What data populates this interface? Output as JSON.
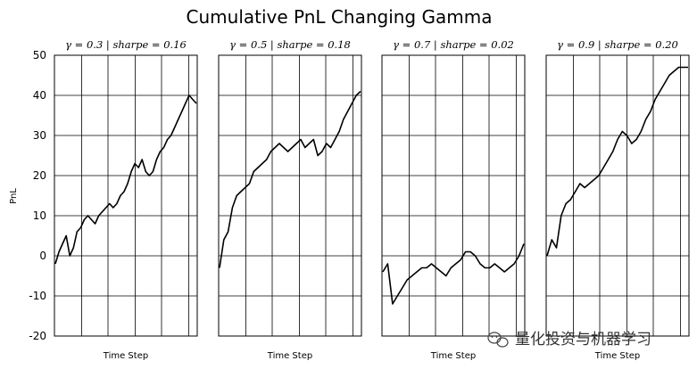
{
  "title": "Cumulative PnL Changing Gamma",
  "ylabel": "PnL",
  "watermark": "量化投资与机器学习",
  "chart_data": [
    {
      "type": "line",
      "subtitle": "γ = 0.3 | sharpe = 0.16",
      "xlabel": "Time Step",
      "ylabel": "PnL",
      "ylim": [
        -20,
        50
      ],
      "yticks": [
        -20,
        -10,
        0,
        10,
        20,
        30,
        40,
        50
      ],
      "grid": true,
      "series": [
        {
          "values": [
            -2,
            1,
            3,
            5,
            0,
            2,
            6,
            7,
            9,
            10,
            9,
            8,
            10,
            11,
            12,
            13,
            12,
            13,
            15,
            16,
            18,
            21,
            23,
            22,
            24,
            21,
            20,
            21,
            24,
            26,
            27,
            29,
            30,
            32,
            34,
            36,
            38,
            40,
            39,
            38
          ]
        }
      ]
    },
    {
      "type": "line",
      "subtitle": "γ = 0.5 | sharpe = 0.18",
      "xlabel": "Time Step",
      "ylim": [
        -20,
        50
      ],
      "grid": true,
      "series": [
        {
          "values": [
            -3,
            4,
            6,
            12,
            15,
            16,
            17,
            18,
            21,
            22,
            23,
            24,
            26,
            27,
            28,
            27,
            26,
            27,
            28,
            29,
            27,
            28,
            29,
            25,
            26,
            28,
            27,
            29,
            31,
            34,
            36,
            38,
            40,
            41
          ]
        }
      ]
    },
    {
      "type": "line",
      "subtitle": "γ = 0.7 | sharpe = 0.02",
      "xlabel": "Time Step",
      "ylim": [
        -20,
        50
      ],
      "grid": true,
      "series": [
        {
          "values": [
            -4,
            -2,
            -12,
            -10,
            -8,
            -6,
            -5,
            -4,
            -3,
            -3,
            -2,
            -3,
            -4,
            -5,
            -3,
            -2,
            -1,
            1,
            1,
            0,
            -2,
            -3,
            -3,
            -2,
            -3,
            -4,
            -3,
            -2,
            0,
            3
          ]
        }
      ]
    },
    {
      "type": "line",
      "subtitle": "γ = 0.9 | sharpe = 0.20",
      "xlabel": "Time Step",
      "ylim": [
        -20,
        50
      ],
      "grid": true,
      "series": [
        {
          "values": [
            0,
            4,
            2,
            10,
            13,
            14,
            16,
            18,
            17,
            18,
            19,
            20,
            22,
            24,
            26,
            29,
            31,
            30,
            28,
            29,
            31,
            34,
            36,
            39,
            41,
            43,
            45,
            46,
            47,
            47,
            47
          ]
        }
      ]
    }
  ]
}
